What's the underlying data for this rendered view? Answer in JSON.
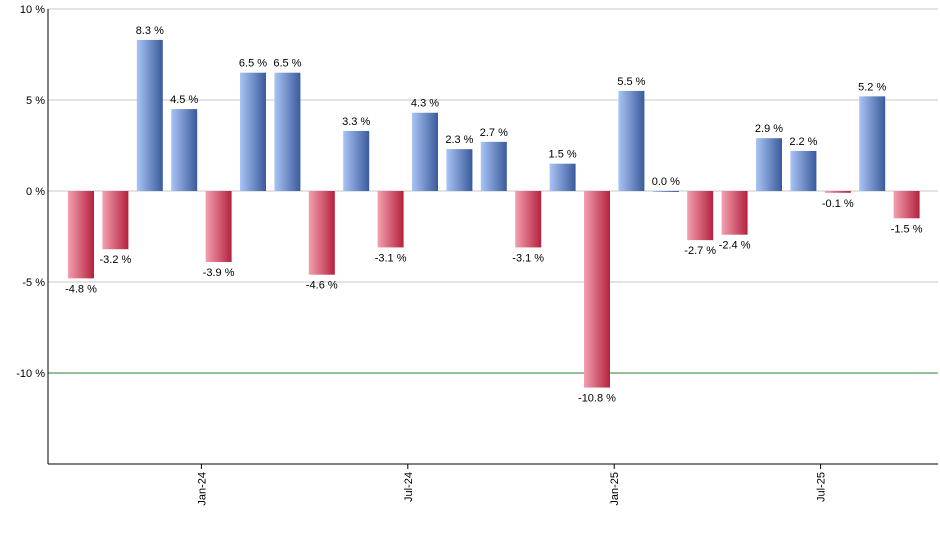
{
  "chart_data": {
    "type": "bar",
    "title": "",
    "xlabel": "",
    "ylabel": "",
    "ylim": [
      -15,
      10
    ],
    "y_ticks": [
      10,
      5,
      0,
      -5,
      -10
    ],
    "y_tick_labels": [
      "10 %",
      "5 %",
      "0 %",
      "-5 %",
      "-10 %"
    ],
    "x_tick_labels": [
      {
        "label": "Jan-24",
        "at_index": 4
      },
      {
        "label": "Jul-24",
        "at_index": 10
      },
      {
        "label": "Jan-25",
        "at_index": 16
      },
      {
        "label": "Jul-25",
        "at_index": 22
      }
    ],
    "reference_line": -10,
    "grid": true,
    "legend": "none",
    "values": [
      -4.8,
      -3.2,
      8.3,
      4.5,
      -3.9,
      6.5,
      6.5,
      -4.6,
      3.3,
      -3.1,
      4.3,
      2.3,
      2.7,
      -3.1,
      1.5,
      -10.8,
      5.5,
      0.0,
      -2.7,
      -2.4,
      2.9,
      2.2,
      -0.1,
      5.2,
      -1.5
    ],
    "value_labels": [
      "-4.8 %",
      "-3.2 %",
      "8.3 %",
      "4.5 %",
      "-3.9 %",
      "6.5 %",
      "6.5 %",
      "-4.6 %",
      "3.3 %",
      "-3.1 %",
      "4.3 %",
      "2.3 %",
      "2.7 %",
      "-3.1 %",
      "1.5 %",
      "-10.8 %",
      "5.5 %",
      "0.0 %",
      "-2.7 %",
      "-2.4 %",
      "2.9 %",
      "2.2 %",
      "-0.1 %",
      "5.2 %",
      "-1.5 %"
    ],
    "colors": {
      "positive_light": "#a9c4f5",
      "positive_dark": "#3a5a9c",
      "negative_light": "#f2a0b0",
      "negative_dark": "#b5213d",
      "reference_line": "#2e7d32",
      "grid": "#c8c8c8",
      "axis": "#000000"
    }
  }
}
